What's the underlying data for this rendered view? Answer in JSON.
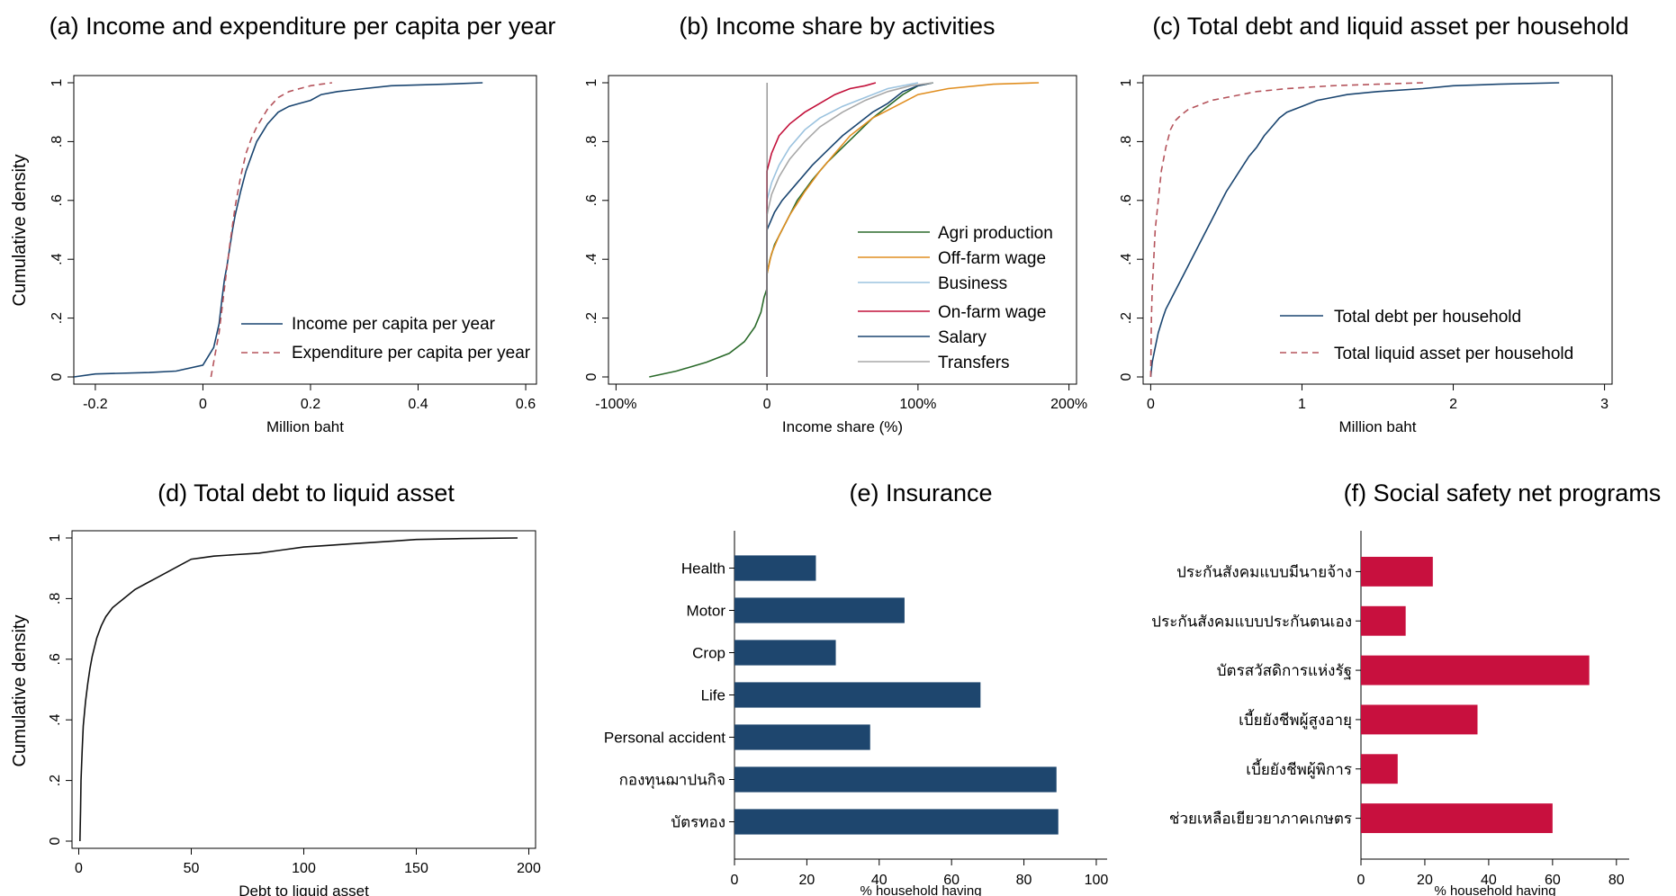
{
  "colors": {
    "navy": "#1a4570",
    "dashred": "#b5545c",
    "green": "#2a6a2a",
    "orange": "#e08e20",
    "lightblue": "#9cc3df",
    "crimson": "#c2103a",
    "gray": "#a8a8a8",
    "barblue": "#1e466e",
    "barred": "#c8103e",
    "black": "#111111"
  },
  "chart_data": [
    {
      "id": "a",
      "type": "line",
      "title": "(a) Income and expenditure per capita per year",
      "xlabel": "Million baht",
      "ylabel": "Cumulative density",
      "xlim": [
        -0.24,
        0.62
      ],
      "ylim": [
        0,
        1
      ],
      "xticks": [
        -0.2,
        0,
        0.2,
        0.4,
        0.6
      ],
      "xtick_labels": [
        "-0.2",
        "0",
        "0.2",
        "0.4",
        "0.6"
      ],
      "yticks": [
        0,
        0.2,
        0.4,
        0.6,
        0.8,
        1
      ],
      "ytick_labels": [
        "0",
        ".2",
        ".4",
        ".6",
        ".8",
        "1"
      ],
      "legend_position": "bottom-right",
      "series": [
        {
          "name": "Income per capita per year",
          "color": "navy",
          "dash": false,
          "x": [
            -0.24,
            -0.2,
            -0.1,
            -0.05,
            0.0,
            0.01,
            0.02,
            0.03,
            0.035,
            0.04,
            0.045,
            0.05,
            0.055,
            0.06,
            0.07,
            0.08,
            0.09,
            0.1,
            0.12,
            0.14,
            0.16,
            0.18,
            0.2,
            0.22,
            0.25,
            0.3,
            0.35,
            0.45,
            0.52
          ],
          "y": [
            0.0,
            0.01,
            0.015,
            0.02,
            0.04,
            0.07,
            0.1,
            0.18,
            0.26,
            0.33,
            0.38,
            0.44,
            0.5,
            0.55,
            0.63,
            0.7,
            0.75,
            0.8,
            0.86,
            0.9,
            0.92,
            0.93,
            0.94,
            0.96,
            0.97,
            0.98,
            0.99,
            0.995,
            1.0
          ]
        },
        {
          "name": "Expenditure per capita per year",
          "color": "dashred",
          "dash": true,
          "x": [
            0.015,
            0.02,
            0.03,
            0.04,
            0.05,
            0.06,
            0.07,
            0.08,
            0.09,
            0.1,
            0.11,
            0.12,
            0.13,
            0.14,
            0.16,
            0.18,
            0.2,
            0.22,
            0.24
          ],
          "y": [
            0.0,
            0.05,
            0.15,
            0.3,
            0.45,
            0.58,
            0.68,
            0.76,
            0.81,
            0.85,
            0.88,
            0.91,
            0.93,
            0.95,
            0.97,
            0.98,
            0.99,
            0.995,
            1.0
          ]
        }
      ]
    },
    {
      "id": "b",
      "type": "line",
      "title": "(b) Income share by activities",
      "xlabel": "Income share (%)",
      "ylabel": "",
      "xlim": [
        -105,
        205
      ],
      "ylim": [
        0,
        1
      ],
      "xticks": [
        -100,
        0,
        100,
        200
      ],
      "xtick_labels": [
        "-100%",
        "0",
        "100%",
        "200%"
      ],
      "yticks": [
        0,
        0.2,
        0.4,
        0.6,
        0.8,
        1
      ],
      "ytick_labels": [
        "0",
        ".2",
        ".4",
        ".6",
        ".8",
        "1"
      ],
      "legend_position": "bottom-right",
      "series": [
        {
          "name": "Agri production",
          "color": "green",
          "x": [
            -78,
            -60,
            -40,
            -25,
            -15,
            -8,
            -4,
            -2,
            0,
            0,
            2,
            5,
            10,
            15,
            20,
            30,
            40,
            50,
            60,
            70,
            80,
            90,
            100,
            110
          ],
          "y": [
            0.0,
            0.02,
            0.05,
            0.08,
            0.12,
            0.17,
            0.22,
            0.27,
            0.3,
            0.35,
            0.4,
            0.45,
            0.5,
            0.55,
            0.6,
            0.67,
            0.73,
            0.78,
            0.83,
            0.88,
            0.92,
            0.96,
            0.99,
            1.0
          ]
        },
        {
          "name": "Off-farm wage",
          "color": "orange",
          "x": [
            0,
            0,
            3,
            8,
            15,
            25,
            35,
            45,
            55,
            70,
            85,
            100,
            120,
            150,
            180
          ],
          "y": [
            0.0,
            0.35,
            0.42,
            0.48,
            0.55,
            0.63,
            0.7,
            0.76,
            0.82,
            0.88,
            0.92,
            0.96,
            0.98,
            0.995,
            1.0
          ]
        },
        {
          "name": "Business",
          "color": "lightblue",
          "x": [
            0,
            0,
            3,
            8,
            15,
            25,
            35,
            50,
            65,
            80,
            100
          ],
          "y": [
            0.0,
            0.6,
            0.66,
            0.72,
            0.78,
            0.84,
            0.88,
            0.92,
            0.95,
            0.98,
            1.0
          ]
        },
        {
          "name": "On-farm wage",
          "color": "crimson",
          "x": [
            0,
            0,
            3,
            8,
            15,
            25,
            35,
            45,
            55,
            65,
            72
          ],
          "y": [
            0.0,
            0.7,
            0.76,
            0.82,
            0.86,
            0.9,
            0.93,
            0.96,
            0.98,
            0.99,
            1.0
          ]
        },
        {
          "name": "Salary",
          "color": "navy",
          "x": [
            0,
            0,
            5,
            10,
            20,
            30,
            40,
            50,
            60,
            70,
            80,
            90,
            100,
            110
          ],
          "y": [
            0.0,
            0.5,
            0.56,
            0.6,
            0.66,
            0.72,
            0.77,
            0.82,
            0.86,
            0.9,
            0.93,
            0.97,
            0.99,
            1.0
          ]
        },
        {
          "name": "Transfers",
          "color": "gray",
          "x": [
            0,
            0,
            3,
            8,
            15,
            25,
            35,
            50,
            65,
            80,
            95,
            110
          ],
          "y": [
            0.0,
            0.55,
            0.62,
            0.68,
            0.74,
            0.8,
            0.85,
            0.9,
            0.94,
            0.97,
            0.99,
            1.0
          ]
        }
      ]
    },
    {
      "id": "c",
      "type": "line",
      "title": "(c) Total debt and liquid asset per household",
      "xlabel": "Million baht",
      "ylabel": "",
      "xlim": [
        -0.05,
        3.05
      ],
      "ylim": [
        0,
        1
      ],
      "xticks": [
        0,
        1,
        2,
        3
      ],
      "xtick_labels": [
        "0",
        "1",
        "2",
        "3"
      ],
      "yticks": [
        0,
        0.2,
        0.4,
        0.6,
        0.8,
        1
      ],
      "ytick_labels": [
        "0",
        ".2",
        ".4",
        ".6",
        ".8",
        "1"
      ],
      "legend_position": "bottom-right",
      "series": [
        {
          "name": "Total debt per household",
          "color": "navy",
          "dash": false,
          "x": [
            0.0,
            0.01,
            0.03,
            0.05,
            0.08,
            0.1,
            0.15,
            0.2,
            0.25,
            0.3,
            0.35,
            0.4,
            0.45,
            0.5,
            0.55,
            0.6,
            0.65,
            0.7,
            0.75,
            0.8,
            0.85,
            0.9,
            1.0,
            1.1,
            1.2,
            1.3,
            1.5,
            1.8,
            2.0,
            2.3,
            2.7
          ],
          "y": [
            0.0,
            0.05,
            0.1,
            0.15,
            0.2,
            0.23,
            0.28,
            0.33,
            0.38,
            0.43,
            0.48,
            0.53,
            0.58,
            0.63,
            0.67,
            0.71,
            0.75,
            0.78,
            0.82,
            0.85,
            0.88,
            0.9,
            0.92,
            0.94,
            0.95,
            0.96,
            0.97,
            0.98,
            0.99,
            0.995,
            1.0
          ]
        },
        {
          "name": "Total liquid asset per household",
          "color": "dashred",
          "dash": true,
          "x": [
            0.0,
            0.005,
            0.01,
            0.02,
            0.03,
            0.05,
            0.07,
            0.1,
            0.13,
            0.16,
            0.2,
            0.25,
            0.3,
            0.4,
            0.5,
            0.7,
            0.9,
            1.2,
            1.5,
            1.8
          ],
          "y": [
            0.0,
            0.2,
            0.3,
            0.4,
            0.5,
            0.6,
            0.7,
            0.78,
            0.84,
            0.87,
            0.89,
            0.91,
            0.92,
            0.94,
            0.95,
            0.97,
            0.98,
            0.99,
            0.995,
            1.0
          ]
        }
      ]
    },
    {
      "id": "d",
      "type": "line",
      "title": "(d) Total debt to liquid asset",
      "xlabel": "Debt to liquid asset",
      "ylabel": "Cumulative density",
      "xlim": [
        -3,
        203
      ],
      "ylim": [
        0,
        1
      ],
      "xticks": [
        0,
        50,
        100,
        150,
        200
      ],
      "xtick_labels": [
        "0",
        "50",
        "100",
        "150",
        "200"
      ],
      "yticks": [
        0,
        0.2,
        0.4,
        0.6,
        0.8,
        1
      ],
      "ytick_labels": [
        "0",
        ".2",
        ".4",
        ".6",
        ".8",
        "1"
      ],
      "series": [
        {
          "name": "",
          "color": "black",
          "x": [
            0.5,
            0.8,
            1,
            1.5,
            2,
            3,
            4,
            5,
            6,
            8,
            10,
            12,
            15,
            20,
            25,
            30,
            35,
            40,
            45,
            50,
            55,
            60,
            70,
            80,
            90,
            100,
            110,
            120,
            130,
            140,
            150,
            170,
            195
          ],
          "y": [
            0.0,
            0.1,
            0.2,
            0.3,
            0.38,
            0.46,
            0.52,
            0.57,
            0.61,
            0.67,
            0.71,
            0.74,
            0.77,
            0.8,
            0.83,
            0.85,
            0.87,
            0.89,
            0.91,
            0.93,
            0.935,
            0.94,
            0.945,
            0.95,
            0.96,
            0.97,
            0.975,
            0.98,
            0.985,
            0.99,
            0.995,
            0.998,
            1.0
          ]
        }
      ]
    },
    {
      "id": "e",
      "type": "bar",
      "orientation": "horizontal",
      "title": "(e) Insurance",
      "xlabel": "% household having",
      "xlim": [
        0,
        103
      ],
      "xticks": [
        0,
        20,
        40,
        60,
        80,
        100
      ],
      "xtick_labels": [
        "0",
        "20",
        "40",
        "60",
        "80",
        "100"
      ],
      "color": "barblue",
      "categories": [
        "Health",
        "Motor",
        "Crop",
        "Life",
        "Personal accident",
        "กองทุนฌาปนกิจ",
        "บัตรทอง"
      ],
      "values": [
        22.5,
        47,
        28,
        68,
        37.5,
        89,
        89.5
      ]
    },
    {
      "id": "f",
      "type": "bar",
      "orientation": "horizontal",
      "title": "(f) Social safety net programs",
      "xlabel": "% household having",
      "xlim": [
        0,
        84
      ],
      "xticks": [
        0,
        20,
        40,
        60,
        80
      ],
      "xtick_labels": [
        "0",
        "20",
        "40",
        "60",
        "80"
      ],
      "color": "barred",
      "categories": [
        "ประกันสังคมแบบมีนายจ้าง",
        "ประกันสังคมแบบประกันตนเอง",
        "บัตรสวัสดิการแห่งรัฐ",
        "เบี้ยยังชีพผู้สูงอายุ",
        "เบี้ยยังชีพผู้พิการ",
        "ช่วยเหลือเยียวยาภาคเกษตร"
      ],
      "values": [
        22.5,
        14,
        71.5,
        36.5,
        11.5,
        60
      ]
    }
  ]
}
